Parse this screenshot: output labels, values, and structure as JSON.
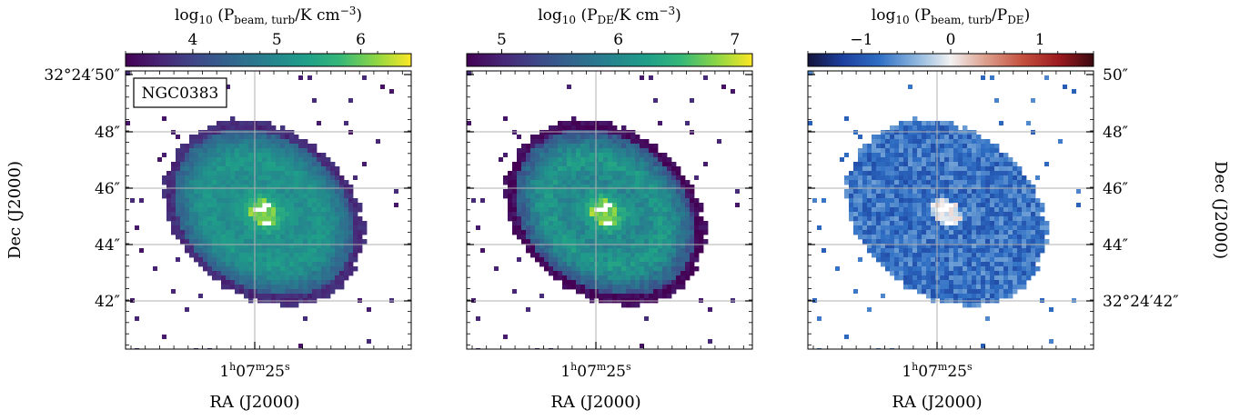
{
  "figure": {
    "ylabel_left": "Dec (J2000)",
    "ylabel_right": "Dec (J2000)",
    "galaxy_label": "NGC0383"
  },
  "chart_data": [
    {
      "type": "heatmap",
      "panel": "left",
      "colormap": "viridis",
      "colorbar": {
        "label_prefix": "log",
        "label_sub": "10",
        "label_body": "(P",
        "label_body_sub": "beam, turb",
        "label_tail": "/K cm",
        "label_sup": "−3",
        "label_close": ")",
        "range": [
          3.2,
          6.6
        ],
        "ticks": [
          {
            "value": 4,
            "label": "4"
          },
          {
            "value": 5,
            "label": "5"
          },
          {
            "value": 6,
            "label": "6"
          }
        ]
      },
      "xlabel": "RA (J2000)",
      "xtick_label": {
        "h": "1",
        "h_unit": "h",
        "m": "07",
        "m_unit": "m",
        "s": "25",
        "s_unit": "s"
      },
      "ytick_labels": [
        "32°24′50″",
        "48″",
        "46″",
        "44″",
        "42″"
      ],
      "ytick_side": "left",
      "grid": true,
      "ring_value_peak": 6.0,
      "edge_value": 4.5,
      "center_value": 6.3
    },
    {
      "type": "heatmap",
      "panel": "middle",
      "colormap": "viridis",
      "colorbar": {
        "label_prefix": "log",
        "label_sub": "10",
        "label_body": "(P",
        "label_body_sub": "DE",
        "label_tail": "/K cm",
        "label_sup": "−3",
        "label_close": ")",
        "range": [
          4.7,
          7.15
        ],
        "ticks": [
          {
            "value": 5,
            "label": "5"
          },
          {
            "value": 6,
            "label": "6"
          },
          {
            "value": 7,
            "label": "7"
          }
        ]
      },
      "xlabel": "RA (J2000)",
      "xtick_label": {
        "h": "1",
        "h_unit": "h",
        "m": "07",
        "m_unit": "m",
        "s": "25",
        "s_unit": "s"
      },
      "ytick_labels": [],
      "grid": true,
      "ring_value_peak": 6.8,
      "edge_value": 5.6,
      "center_value": 7.0
    },
    {
      "type": "heatmap",
      "panel": "right",
      "colormap": "RdBu_r",
      "colorbar": {
        "label_prefix": "log",
        "label_sub": "10",
        "label_body": "(P",
        "label_body_sub": "beam, turb",
        "label_tail": "/P",
        "label_tail_sub": "DE",
        "label_close": ")",
        "range": [
          -1.6,
          1.6
        ],
        "ticks": [
          {
            "value": -1,
            "label": "−1"
          },
          {
            "value": 0,
            "label": "0"
          },
          {
            "value": 1,
            "label": "1"
          }
        ]
      },
      "xlabel": "RA (J2000)",
      "xtick_label": {
        "h": "1",
        "h_unit": "h",
        "m": "07",
        "m_unit": "m",
        "s": "25",
        "s_unit": "s"
      },
      "ytick_labels": [
        "50″",
        "48″",
        "46″",
        "44″",
        "32°24′42″"
      ],
      "ytick_side": "right",
      "grid": true,
      "typical_value": -0.8
    }
  ]
}
